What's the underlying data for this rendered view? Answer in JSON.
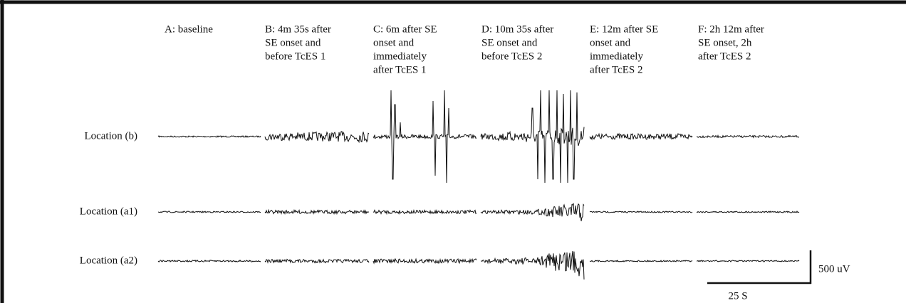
{
  "columns": [
    [
      "A: baseline"
    ],
    [
      "B: 4m 35s after",
      "SE onset and",
      "before TcES 1"
    ],
    [
      "C: 6m after SE",
      "onset and",
      "immediately",
      "after TcES 1"
    ],
    [
      "D: 10m 35s after",
      "SE onset and",
      "before TcES 2"
    ],
    [
      "E: 12m after SE",
      "onset and",
      "immediately",
      "after TcES 2"
    ],
    [
      "F: 2h 12m after",
      "SE onset, 2h",
      "after TcES 2"
    ]
  ],
  "rows": [
    "Location (b)",
    "Location (a1)",
    "Location (a2)"
  ],
  "scale_bar": {
    "vertical": "500 uV",
    "horizontal": "25 S"
  }
}
